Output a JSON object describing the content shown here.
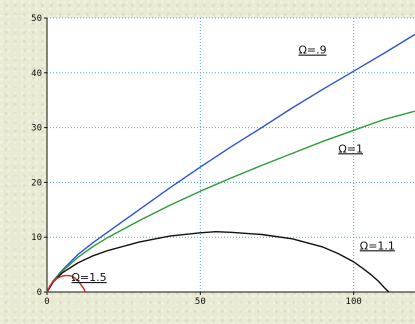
{
  "chart_data": {
    "type": "line",
    "title": "",
    "xlabel": "",
    "ylabel": "",
    "xlim": [
      0,
      120
    ],
    "ylim": [
      0,
      50
    ],
    "xticks": [
      0,
      50,
      100
    ],
    "yticks": [
      0,
      10,
      20,
      30,
      40,
      50
    ],
    "grid": "dotted",
    "series": [
      {
        "name": "Ω=.9",
        "color": "#2a55d4",
        "label_at": [
          82,
          43.5
        ],
        "x": [
          0,
          2,
          5,
          10,
          15,
          20,
          30,
          40,
          50,
          60,
          70,
          80,
          90,
          100,
          110,
          120
        ],
        "y": [
          0,
          2,
          4,
          6.8,
          9,
          11,
          15,
          19,
          22.8,
          26.5,
          30,
          33.6,
          37,
          40.3,
          43.6,
          47
        ]
      },
      {
        "name": "Ω=1",
        "color": "#2f9a3a",
        "label_at": [
          95,
          25.5
        ],
        "x": [
          0,
          2,
          5,
          10,
          15,
          20,
          30,
          40,
          50,
          60,
          70,
          80,
          90,
          100,
          110,
          120
        ],
        "y": [
          0,
          2,
          3.8,
          6.3,
          8.3,
          10,
          13,
          15.8,
          18.4,
          20.8,
          23.1,
          25.3,
          27.5,
          29.5,
          31.5,
          33
        ]
      },
      {
        "name": "Ω=1.1",
        "color": "#111111",
        "label_at": [
          102,
          7.8
        ],
        "x": [
          0,
          2,
          5,
          10,
          15,
          20,
          30,
          40,
          50,
          55,
          60,
          70,
          80,
          90,
          95,
          100,
          103,
          106,
          108,
          110,
          111.5
        ],
        "y": [
          0,
          1.8,
          3.5,
          5.3,
          6.6,
          7.6,
          9.1,
          10.2,
          10.8,
          11,
          10.9,
          10.5,
          9.7,
          8.2,
          7,
          5.5,
          4.3,
          3,
          2,
          0.8,
          0
        ]
      },
      {
        "name": "Ω=1.5",
        "color": "#e0221c",
        "label_at": [
          8,
          2
        ],
        "x": [
          0,
          1,
          2,
          3,
          4,
          5,
          6,
          7,
          8,
          9,
          10,
          11,
          12,
          12.5
        ],
        "y": [
          0,
          1.2,
          1.9,
          2.4,
          2.7,
          2.9,
          3,
          3,
          2.9,
          2.6,
          2.1,
          1.4,
          0.6,
          0
        ]
      }
    ]
  }
}
